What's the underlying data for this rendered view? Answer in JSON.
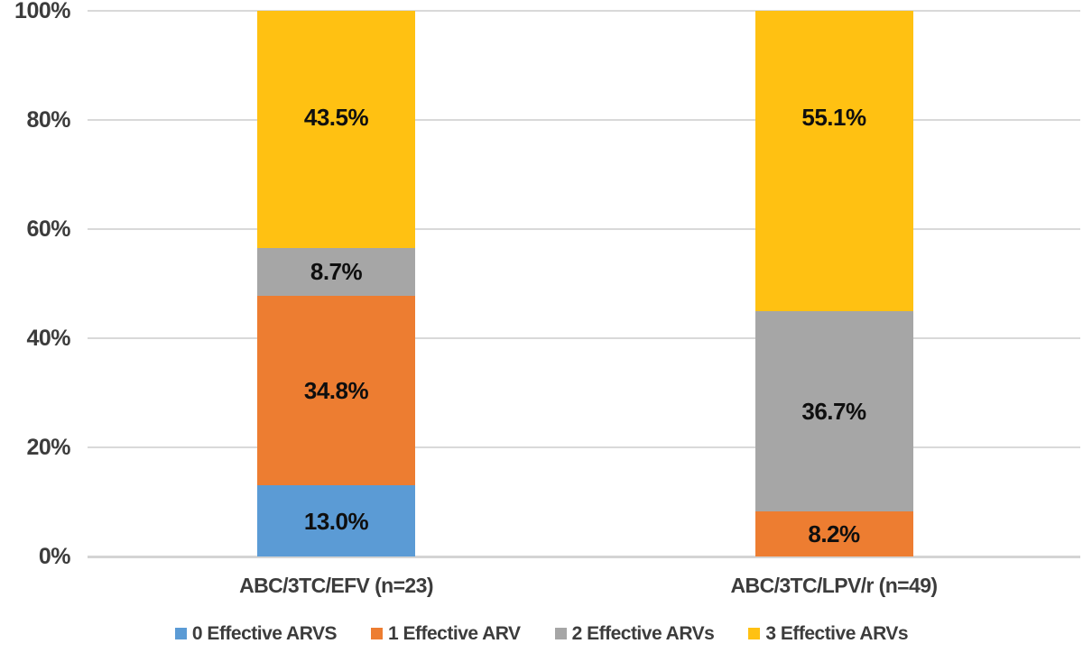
{
  "chart_data": {
    "type": "bar",
    "stacked": true,
    "title": "",
    "xlabel": "",
    "ylabel": "",
    "categories": [
      "ABC/3TC/EFV (n=23)",
      "ABC/3TC/LPV/r (n=49)"
    ],
    "series": [
      {
        "name": "0 Effective ARVS",
        "color": "#5B9BD5",
        "values": [
          13.0,
          0
        ]
      },
      {
        "name": "1 Effective ARV",
        "color": "#ED7D31",
        "values": [
          34.8,
          8.2
        ]
      },
      {
        "name": "2 Effective ARVs",
        "color": "#A6A6A6",
        "values": [
          8.7,
          36.7
        ]
      },
      {
        "name": "3 Effective ARVs",
        "color": "#FFC112",
        "values": [
          43.5,
          55.1
        ]
      }
    ],
    "segment_labels": [
      [
        "13.0%",
        "34.8%",
        "8.7%",
        "43.5%"
      ],
      [
        null,
        "8.2%",
        "36.7%",
        "55.1%"
      ]
    ],
    "ylim": [
      0,
      100
    ],
    "y_tick_step": 20,
    "y_ticks": [
      "0%",
      "20%",
      "40%",
      "60%",
      "80%",
      "100%"
    ],
    "grid": true,
    "legend_position": "bottom"
  },
  "palette": {
    "gridline": "#d9d9d9",
    "axis_text": "#3c3c3c",
    "data_label_text": "#0f0f0f",
    "background": "#ffffff"
  }
}
